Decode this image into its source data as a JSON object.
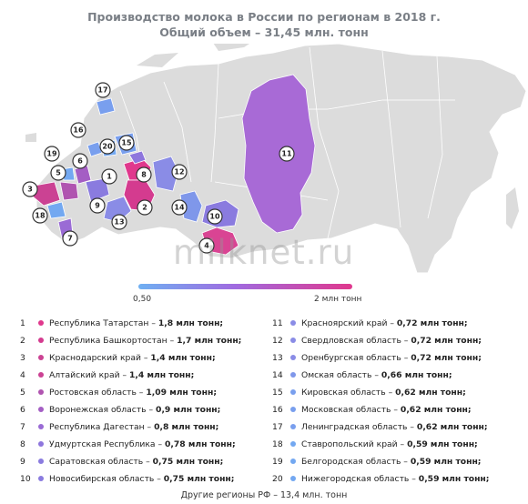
{
  "title": {
    "line1": "Производство молока в России по регионам в 2018 г.",
    "line2": "Общий объем – 31,45 млн. тонн"
  },
  "scale": {
    "min_label": "0,50",
    "max_label": "2 млн тонн",
    "color_low": "#6fb0f2",
    "color_high": "#e0388d"
  },
  "watermark": "milknet.ru",
  "colors": {
    "land": "#dcdcdc",
    "border": "#ffffff",
    "krasnoyarsk": "#a86ad6",
    "altai": "#d94493",
    "tatarstan": "#e0388d",
    "bashkortostan": "#d43b8f",
    "blue": "#8aa3ee",
    "purple": "#9a7ce2"
  },
  "regions": [
    {
      "num": "1",
      "name": "Республика Татарстан",
      "value": "1,8 млн тонн;",
      "color": "#e0388d"
    },
    {
      "num": "2",
      "name": "Республика Башкортостан",
      "value": "1,7 млн тонн;",
      "color": "#d43b8f"
    },
    {
      "num": "3",
      "name": "Краснодарский край",
      "value": "1,4 млн тонн;",
      "color": "#cb4293"
    },
    {
      "num": "4",
      "name": "Алтайский край",
      "value": "1,4 млн тонн;",
      "color": "#cb4293"
    },
    {
      "num": "5",
      "name": "Ростовская область",
      "value": "1,09 млн тонн;",
      "color": "#b054b0"
    },
    {
      "num": "6",
      "name": "Воронежская область",
      "value": "0,9 млн тонн;",
      "color": "#a45ec4"
    },
    {
      "num": "7",
      "name": "Республика Дагестан",
      "value": "0,8 млн тонн;",
      "color": "#9a6bd5"
    },
    {
      "num": "8",
      "name": "Удмуртская Республика",
      "value": "0,78 млн тонн;",
      "color": "#8e76dd"
    },
    {
      "num": "9",
      "name": "Саратовская область",
      "value": "0,75 млн тонн;",
      "color": "#8a7bdf"
    },
    {
      "num": "10",
      "name": "Новосибирская область",
      "value": "0,75 млн тонн;",
      "color": "#8a7bdf"
    },
    {
      "num": "11",
      "name": "Красноярский край",
      "value": "0,72 млн тонн;",
      "color": "#8a8ce6"
    },
    {
      "num": "12",
      "name": "Свердловская область",
      "value": "0,72 млн тонн;",
      "color": "#8a8ce6"
    },
    {
      "num": "13",
      "name": "Оренбургская область",
      "value": "0,72 млн тонн;",
      "color": "#8a8ce6"
    },
    {
      "num": "14",
      "name": "Омская область",
      "value": "0,66 млн тонн;",
      "color": "#7f97ea"
    },
    {
      "num": "15",
      "name": "Кировская область",
      "value": "0,62 млн тонн;",
      "color": "#799fee"
    },
    {
      "num": "16",
      "name": "Московская область",
      "value": "0,62 млн тонн;",
      "color": "#799fee"
    },
    {
      "num": "17",
      "name": "Ленинградская область",
      "value": "0,62 млн тонн;",
      "color": "#799fee"
    },
    {
      "num": "18",
      "name": "Ставропольский край",
      "value": "0,59 млн тонн;",
      "color": "#73a8f1"
    },
    {
      "num": "19",
      "name": "Белгородская область",
      "value": "0,59 млн тонн;",
      "color": "#73a8f1"
    },
    {
      "num": "20",
      "name": "Нижегородская область",
      "value": "0,59 млн тонн;",
      "color": "#73a8f1"
    }
  ],
  "footer": "Другие регионы РФ – 13,4 млн. тонн"
}
